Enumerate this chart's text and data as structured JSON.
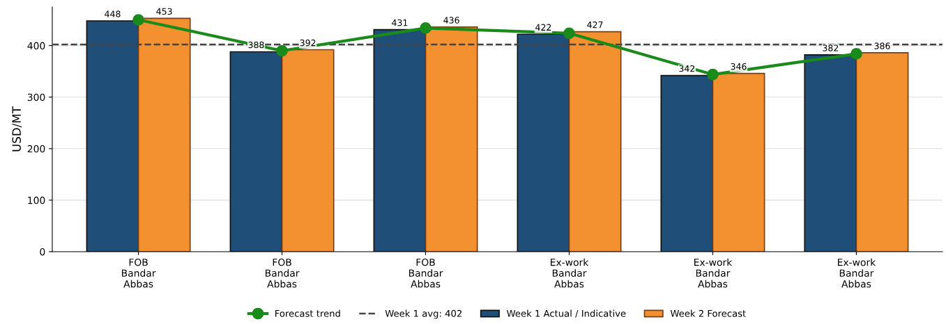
{
  "chart_data": {
    "type": "bar",
    "ylabel": "USD/MT",
    "categories": [
      "FOB\nBandar\nAbbas",
      "FOB\nBandar\nAbbas",
      "FOB\nBandar\nAbbas",
      "Ex-work\nBandar\nAbbas",
      "Ex-work\nBandar\nAbbas",
      "Ex-work\nBandar\nAbbas"
    ],
    "series": [
      {
        "name": "Forecast trend",
        "type": "line",
        "color": "#1a8a1a",
        "marker": "circle",
        "values": [
          450,
          390,
          434,
          424,
          344,
          384
        ]
      },
      {
        "name": "Week 1 Actual / Indicative",
        "color": "#1f4e79",
        "values": [
          448,
          388,
          431,
          422,
          342,
          382
        ],
        "value_labels": [
          "448",
          "388",
          "431",
          "422",
          "342",
          "382"
        ]
      },
      {
        "name": "Week 2 Forecast",
        "color": "#f39130",
        "values": [
          453,
          392,
          436,
          427,
          346,
          386
        ],
        "value_labels": [
          "453",
          "392",
          "436",
          "427",
          "346",
          "386"
        ]
      }
    ],
    "ref_lines": [
      {
        "axis": "y",
        "value": 402,
        "label": "Week 1 avg: 402",
        "color": "#444444",
        "line_style": "dashed"
      }
    ],
    "ylim": [
      0,
      475
    ],
    "yticks": [
      0,
      100,
      200,
      300,
      400
    ],
    "grid": "y",
    "legend": "bottom"
  }
}
